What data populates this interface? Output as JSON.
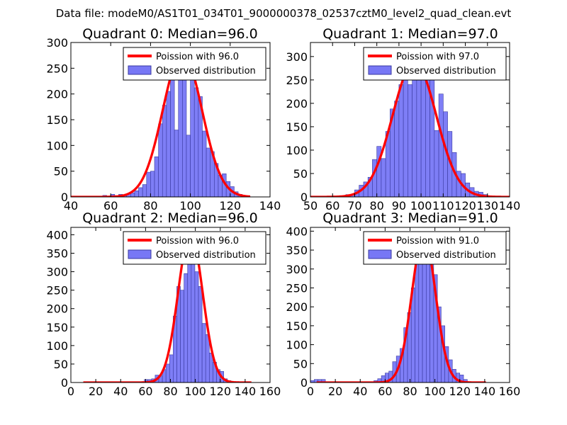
{
  "figure": {
    "title": "Data file: modeM0/AS1T01_034T01_9000000378_02537cztM0_level2_quad_clean.evt"
  },
  "colors": {
    "histogram_fill": "#7777f5",
    "histogram_edge": "#3a3aa0",
    "poisson_line": "#ff0000",
    "axes": "#000000",
    "background": "#ffffff"
  },
  "chart_data": [
    {
      "type": "bar",
      "title": "Quadrant 0: Median=96.0",
      "xlim": [
        40,
        140
      ],
      "ylim": [
        0,
        300
      ],
      "xticks": [
        40,
        60,
        80,
        100,
        120,
        140
      ],
      "yticks": [
        0,
        50,
        100,
        150,
        200,
        250,
        300
      ],
      "bin_width": 2,
      "bins": [
        40,
        42,
        44,
        46,
        48,
        50,
        52,
        54,
        56,
        58,
        60,
        62,
        64,
        66,
        68,
        70,
        72,
        74,
        76,
        78,
        80,
        82,
        84,
        86,
        88,
        90,
        92,
        94,
        96,
        98,
        100,
        102,
        104,
        106,
        108,
        110,
        112,
        114,
        116,
        118,
        120,
        122,
        124,
        126,
        128
      ],
      "values": [
        1,
        0,
        0,
        0,
        0,
        0,
        0,
        0,
        3,
        0,
        5,
        0,
        5,
        3,
        6,
        8,
        12,
        18,
        24,
        48,
        50,
        78,
        142,
        178,
        205,
        228,
        130,
        268,
        255,
        120,
        245,
        212,
        195,
        128,
        95,
        88,
        65,
        42,
        45,
        30,
        20,
        10,
        5,
        3,
        1
      ],
      "poisson": {
        "mean": 96.0,
        "label": "Poission with 96.0",
        "range": [
          40,
          130
        ],
        "peak": 280
      },
      "legend": {
        "poisson_label": "Poission with 96.0",
        "observed_label": "Observed distribution",
        "placement": "top-right"
      }
    },
    {
      "type": "bar",
      "title": "Quadrant 1: Median=97.0",
      "xlim": [
        50,
        140
      ],
      "ylim": [
        0,
        330
      ],
      "xticks": [
        50,
        60,
        70,
        80,
        90,
        100,
        110,
        120,
        130,
        140
      ],
      "yticks": [
        0,
        50,
        100,
        150,
        200,
        250,
        300
      ],
      "bin_width": 2,
      "bins": [
        50,
        52,
        54,
        56,
        58,
        60,
        62,
        64,
        66,
        68,
        70,
        72,
        74,
        76,
        78,
        80,
        82,
        84,
        86,
        88,
        90,
        92,
        94,
        96,
        98,
        100,
        102,
        104,
        106,
        108,
        110,
        112,
        114,
        116,
        118,
        120,
        122,
        124,
        126,
        128,
        130,
        132,
        134,
        136,
        138
      ],
      "values": [
        0,
        0,
        0,
        0,
        1,
        0,
        0,
        2,
        5,
        5,
        15,
        25,
        32,
        42,
        80,
        108,
        82,
        140,
        188,
        205,
        240,
        255,
        240,
        288,
        290,
        285,
        255,
        265,
        142,
        220,
        182,
        140,
        95,
        55,
        50,
        30,
        20,
        12,
        10,
        5,
        2,
        1,
        1,
        0,
        0
      ],
      "poisson": {
        "mean": 97.0,
        "label": "Poission with 97.0",
        "range": [
          50,
          140
        ],
        "peak": 288
      },
      "legend": {
        "poisson_label": "Poission with 97.0",
        "observed_label": "Observed distribution",
        "placement": "top-right"
      }
    },
    {
      "type": "bar",
      "title": "Quadrant 2: Median=96.0",
      "xlim": [
        0,
        160
      ],
      "ylim": [
        0,
        420
      ],
      "xticks": [
        0,
        20,
        40,
        60,
        80,
        100,
        120,
        140,
        160
      ],
      "yticks": [
        0,
        50,
        100,
        150,
        200,
        250,
        300,
        350,
        400
      ],
      "bin_width": 2.9,
      "bins": [
        59.0,
        61.9,
        64.8,
        67.7,
        70.6,
        73.5,
        76.4,
        79.3,
        82.2,
        85.1,
        88.0,
        90.9,
        93.8,
        96.7,
        99.6,
        102.5,
        105.4,
        108.3,
        111.2,
        114.1,
        117.0,
        119.9,
        122.8,
        125.7
      ],
      "values": [
        8,
        8,
        10,
        20,
        18,
        35,
        50,
        75,
        180,
        260,
        250,
        295,
        370,
        330,
        300,
        260,
        160,
        130,
        80,
        55,
        35,
        30,
        10,
        5
      ],
      "poisson": {
        "mean": 96.0,
        "label": "Poission with 96.0",
        "range": [
          10,
          145
        ],
        "peak": 405
      },
      "legend": {
        "poisson_label": "Poission with 96.0",
        "observed_label": "Observed distribution",
        "placement": "top-right"
      }
    },
    {
      "type": "bar",
      "title": "Quadrant 3: Median=91.0",
      "xlim": [
        0,
        160
      ],
      "ylim": [
        0,
        410
      ],
      "xticks": [
        0,
        20,
        40,
        60,
        80,
        100,
        120,
        140,
        160
      ],
      "yticks": [
        0,
        50,
        100,
        150,
        200,
        250,
        300,
        350,
        400
      ],
      "bin_width": 3,
      "bins": [
        0,
        3,
        6,
        9,
        51,
        54,
        57,
        60,
        63,
        66,
        69,
        72,
        75,
        78,
        81,
        84,
        87,
        90,
        93,
        96,
        99,
        102,
        105,
        108,
        111,
        114,
        117,
        120,
        123
      ],
      "values": [
        5,
        8,
        8,
        8,
        5,
        10,
        18,
        25,
        30,
        55,
        70,
        90,
        145,
        185,
        250,
        335,
        355,
        385,
        375,
        345,
        285,
        200,
        150,
        95,
        60,
        35,
        25,
        20,
        8
      ],
      "poisson": {
        "mean": 91.0,
        "label": "Poission with 91.0",
        "range": [
          5,
          141
        ],
        "peak": 388
      },
      "legend": {
        "poisson_label": "Poission with 91.0",
        "observed_label": "Observed distribution",
        "placement": "top-right"
      }
    }
  ]
}
